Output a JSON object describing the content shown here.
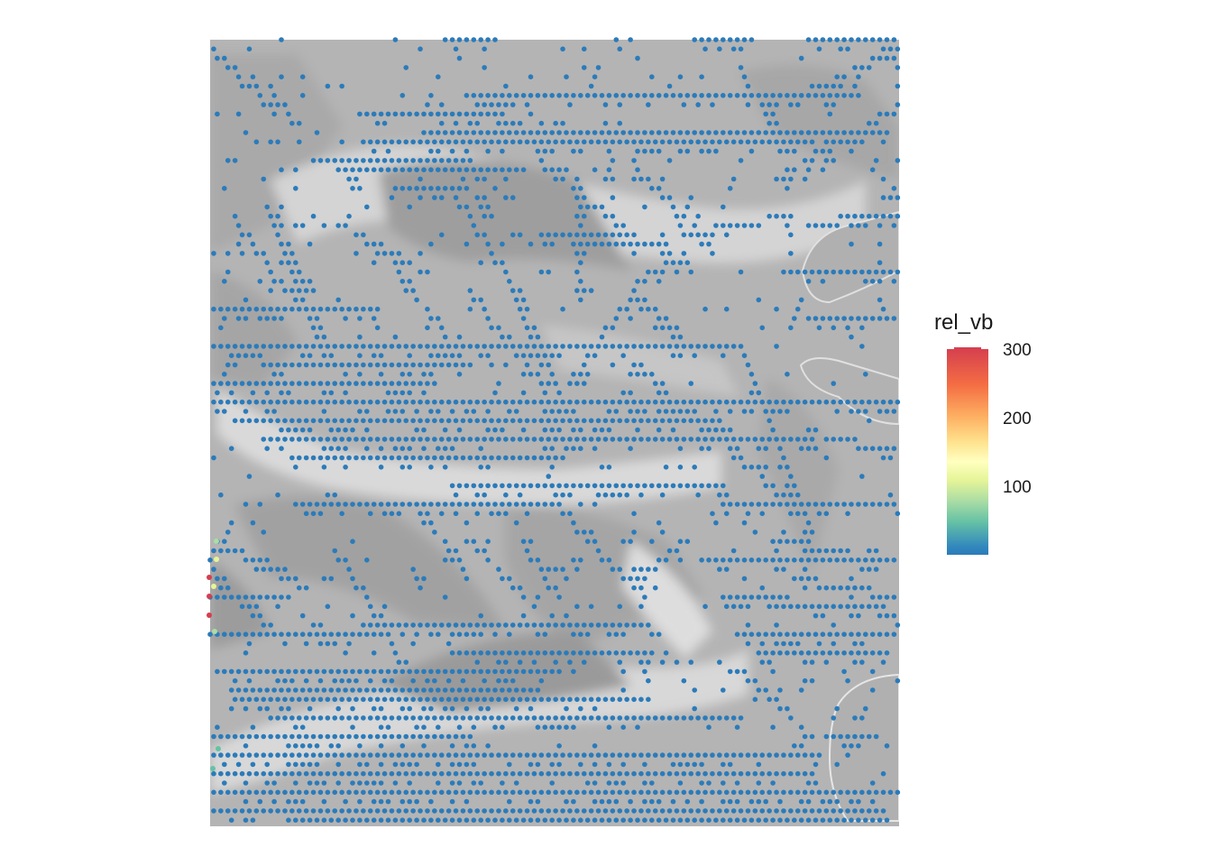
{
  "chart_data": {
    "type": "scatter",
    "title": "",
    "xlabel": "",
    "ylabel": "",
    "background": "grey hillshade relief",
    "point_color_default": "#2b7bba",
    "legend": {
      "title": "rel_vb",
      "position": "right",
      "range": [
        0,
        300
      ],
      "ticks": [
        "100",
        "200",
        "300"
      ],
      "palette": [
        "#3288bd",
        "#66c2a5",
        "#abdda4",
        "#e6f598",
        "#ffffbf",
        "#fee08b",
        "#fdae61",
        "#f46d43",
        "#d53e4f"
      ]
    },
    "highlighted_points_description": "points along the left edge (rows near the lower-left) take green to red values",
    "highlighted_values": [
      300,
      290,
      285,
      120,
      110,
      80,
      60,
      50,
      40
    ]
  }
}
